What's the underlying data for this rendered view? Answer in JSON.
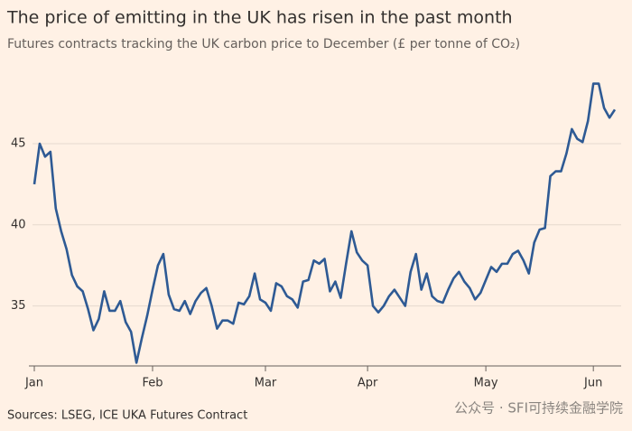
{
  "chart_data": {
    "type": "line",
    "title": "The price of emitting in the UK has risen in the past month",
    "subtitle": "Futures contracts tracking the UK carbon price to December (£ per tonne of CO₂)",
    "source": "Sources: LSEG, ICE UKA Futures Contract",
    "watermark": "公众号 · SFI可持续金融学院",
    "color": "#2e5a94",
    "categories": [
      "Jan",
      null,
      null,
      null,
      null,
      null,
      null,
      null,
      null,
      null,
      null,
      null,
      null,
      null,
      null,
      null,
      null,
      null,
      null,
      null,
      null,
      null,
      "Feb",
      null,
      null,
      null,
      null,
      null,
      null,
      null,
      null,
      null,
      null,
      null,
      null,
      null,
      null,
      null,
      null,
      null,
      null,
      null,
      null,
      "Mar",
      null,
      null,
      null,
      null,
      null,
      null,
      null,
      null,
      null,
      null,
      null,
      null,
      null,
      null,
      null,
      null,
      null,
      null,
      "Apr",
      null,
      null,
      null,
      null,
      null,
      null,
      null,
      null,
      null,
      null,
      null,
      null,
      null,
      null,
      null,
      null,
      null,
      null,
      null,
      null,
      null,
      "May",
      null,
      null,
      null,
      null,
      null,
      null,
      null,
      null,
      null,
      null,
      null,
      null,
      null,
      null,
      null,
      null,
      null,
      null,
      null,
      "Jun",
      null,
      null,
      null,
      null
    ],
    "values": [
      42.5,
      45.0,
      44.2,
      44.5,
      41.0,
      39.6,
      38.5,
      36.9,
      36.2,
      35.9,
      34.8,
      33.5,
      34.2,
      35.9,
      34.7,
      34.7,
      35.3,
      34.0,
      33.4,
      31.5,
      33.0,
      34.4,
      36.0,
      37.5,
      38.2,
      35.7,
      34.8,
      34.7,
      35.3,
      34.5,
      35.3,
      35.8,
      36.1,
      35.0,
      33.6,
      34.1,
      34.1,
      33.9,
      35.2,
      35.1,
      35.6,
      37.0,
      35.4,
      35.2,
      34.7,
      36.4,
      36.2,
      35.6,
      35.4,
      34.9,
      36.5,
      36.6,
      37.8,
      37.6,
      37.9,
      35.9,
      36.5,
      35.5,
      37.6,
      39.6,
      38.3,
      37.8,
      37.5,
      35.0,
      34.6,
      35.0,
      35.6,
      36.0,
      35.5,
      35.0,
      37.1,
      38.2,
      36.0,
      37.0,
      35.6,
      35.3,
      35.2,
      36.0,
      36.7,
      37.1,
      36.5,
      36.1,
      35.4,
      35.8,
      36.6,
      37.4,
      37.1,
      37.6,
      37.6,
      38.2,
      38.4,
      37.8,
      37.0,
      38.9,
      39.7,
      39.8,
      43.0,
      43.3,
      43.3,
      44.4,
      45.9,
      45.3,
      45.1,
      46.4,
      48.7,
      48.7,
      47.2,
      46.6,
      47.1
    ],
    "ylim": [
      31.3,
      49.4
    ],
    "yticks": [
      35,
      40,
      45
    ],
    "grid": true
  }
}
